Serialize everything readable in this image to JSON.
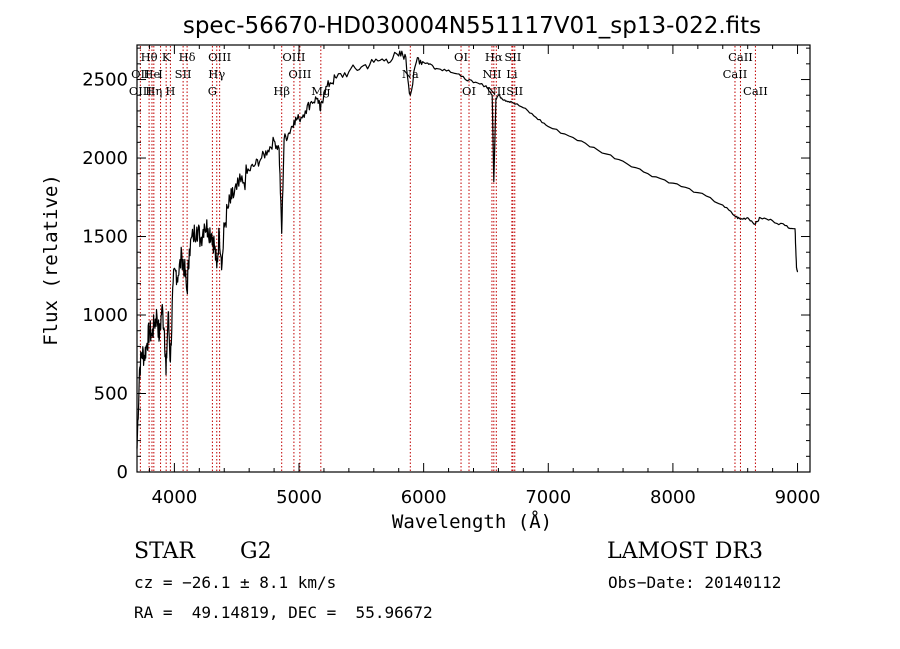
{
  "chart_data": {
    "type": "line",
    "title": "spec-56670-HD030004N551117V01_sp13-022.fits",
    "xlabel": "Wavelength (Å)",
    "ylabel": "Flux (relative)",
    "xlim": [
      3700,
      9100
    ],
    "ylim": [
      0,
      2720
    ],
    "x_ticks": [
      4000,
      5000,
      6000,
      7000,
      8000,
      9000
    ],
    "y_ticks": [
      0,
      500,
      1000,
      1500,
      2000,
      2500
    ],
    "series": [
      {
        "x": [
          3700,
          3720,
          3740,
          3760,
          3780,
          3800,
          3820,
          3840,
          3860,
          3880,
          3900,
          3920,
          3933,
          3950,
          3968,
          3990,
          4010,
          4030,
          4060,
          4080,
          4101,
          4120,
          4150,
          4180,
          4210,
          4240,
          4270,
          4300,
          4320,
          4340,
          4360,
          4383,
          4400,
          4430,
          4460,
          4500,
          4550,
          4600,
          4650,
          4700,
          4750,
          4800,
          4840,
          4861,
          4880,
          4920,
          4960,
          5000,
          5050,
          5100,
          5150,
          5172,
          5200,
          5250,
          5300,
          5400,
          5500,
          5600,
          5700,
          5800,
          5850,
          5893,
          5950,
          6000,
          6050,
          6100,
          6200,
          6300,
          6400,
          6500,
          6550,
          6563,
          6580,
          6600,
          6650,
          6700,
          6800,
          6900,
          7000,
          7200,
          7400,
          7600,
          7800,
          8000,
          8200,
          8400,
          8498,
          8542,
          8600,
          8662,
          8700,
          8800,
          8900,
          8980,
          8992,
          9000
        ],
        "y": [
          150,
          650,
          760,
          740,
          820,
          900,
          870,
          950,
          1000,
          850,
          1050,
          900,
          620,
          1020,
          700,
          1200,
          1280,
          1250,
          1380,
          1300,
          1150,
          1420,
          1500,
          1560,
          1480,
          1580,
          1550,
          1520,
          1450,
          1300,
          1530,
          1330,
          1560,
          1680,
          1740,
          1800,
          1840,
          1920,
          1960,
          2000,
          2050,
          2110,
          2060,
          1520,
          2120,
          2160,
          2240,
          2250,
          2300,
          2360,
          2380,
          2300,
          2420,
          2480,
          2510,
          2550,
          2580,
          2610,
          2630,
          2650,
          2660,
          2400,
          2640,
          2610,
          2600,
          2570,
          2560,
          2520,
          2480,
          2460,
          2400,
          1850,
          2380,
          2400,
          2370,
          2360,
          2320,
          2260,
          2200,
          2130,
          2050,
          1980,
          1900,
          1840,
          1780,
          1700,
          1630,
          1610,
          1620,
          1580,
          1620,
          1600,
          1570,
          1550,
          1300,
          1280
        ]
      }
    ],
    "lines": [
      {
        "label": "Hθ",
        "x": 3797,
        "row": 1
      },
      {
        "label": "OII",
        "x": 3727,
        "row": 2
      },
      {
        "label": "OIII",
        "x": 3727,
        "row": 3
      },
      {
        "label": "He",
        "x": 3820,
        "row": 2
      },
      {
        "label": "Hη",
        "x": 3835,
        "row": 3
      },
      {
        "label": "K",
        "x": 3934,
        "row": 1
      },
      {
        "label": "I",
        "x": 3889,
        "row": 2
      },
      {
        "label": "H",
        "x": 3968,
        "row": 3
      },
      {
        "label": "SII",
        "x": 4070,
        "row": 2
      },
      {
        "label": "Hδ",
        "x": 4102,
        "row": 1
      },
      {
        "label": "OIII",
        "x": 4363,
        "row": 1
      },
      {
        "label": "Hγ",
        "x": 4340,
        "row": 2
      },
      {
        "label": "G",
        "x": 4305,
        "row": 3
      },
      {
        "label": "Hβ",
        "x": 4861,
        "row": 3
      },
      {
        "label": "OIII",
        "x": 4959,
        "row": 1
      },
      {
        "label": "OIII",
        "x": 5007,
        "row": 2
      },
      {
        "label": "Mg",
        "x": 5175,
        "row": 3
      },
      {
        "label": "Na",
        "x": 5893,
        "row": 2
      },
      {
        "label": "OI",
        "x": 6300,
        "row": 1
      },
      {
        "label": "OI",
        "x": 6364,
        "row": 3
      },
      {
        "label": "Hα",
        "x": 6563,
        "row": 1
      },
      {
        "label": "SII",
        "x": 6716,
        "row": 1
      },
      {
        "label": "NII",
        "x": 6548,
        "row": 2
      },
      {
        "label": "Li",
        "x": 6708,
        "row": 2
      },
      {
        "label": "NII",
        "x": 6583,
        "row": 3
      },
      {
        "label": "SII",
        "x": 6731,
        "row": 3
      },
      {
        "label": "CaII",
        "x": 8542,
        "row": 1
      },
      {
        "label": "CaII",
        "x": 8498,
        "row": 2
      },
      {
        "label": "CaII",
        "x": 8662,
        "row": 3
      }
    ]
  },
  "info": {
    "object_type": "STAR",
    "subclass": "G2",
    "survey": "LAMOST DR3",
    "cz": "cz = −26.1 ± 8.1 km/s",
    "obs_date": "Obs−Date: 20140112",
    "coords": "RA =  49.14819, DEC =  55.96672"
  },
  "colors": {
    "spectrum": "#000000",
    "line_markers": "#c00000"
  }
}
